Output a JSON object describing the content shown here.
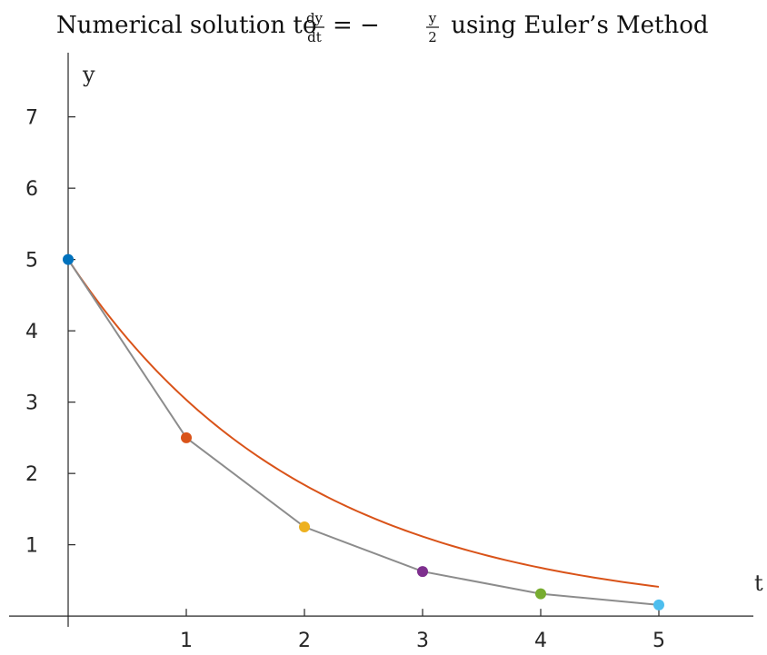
{
  "chart_data": {
    "type": "line",
    "title": {
      "prefix": "Numerical solution to ",
      "frac1_num": "dy",
      "frac1_den": "dt",
      "equals": "= −",
      "frac2_num": "y",
      "frac2_den": "2",
      "suffix": " using Euler’s Method"
    },
    "xlabel": "t",
    "ylabel": "y",
    "xlim": [
      0,
      5.8
    ],
    "ylim": [
      -0.1,
      7.9
    ],
    "xticks": [
      "1",
      "2",
      "3",
      "4",
      "5"
    ],
    "yticks": [
      "1",
      "2",
      "3",
      "4",
      "5",
      "6",
      "7"
    ],
    "grid": false,
    "series": [
      {
        "kind": "euler-approximation",
        "color": "#8c8c8c",
        "x": [
          0,
          1,
          2,
          3,
          4,
          5
        ],
        "y": [
          5,
          2.5,
          1.25,
          0.625,
          0.3125,
          0.15625
        ],
        "point_colors": [
          "#0072bd",
          "#d95319",
          "#edb120",
          "#7e2f8e",
          "#77ac30",
          "#4dbeee"
        ]
      },
      {
        "kind": "exact-solution",
        "color": "#d95319",
        "formula_params": {
          "y0": 5,
          "k": -0.5
        },
        "x_range": [
          0,
          5
        ]
      }
    ]
  }
}
